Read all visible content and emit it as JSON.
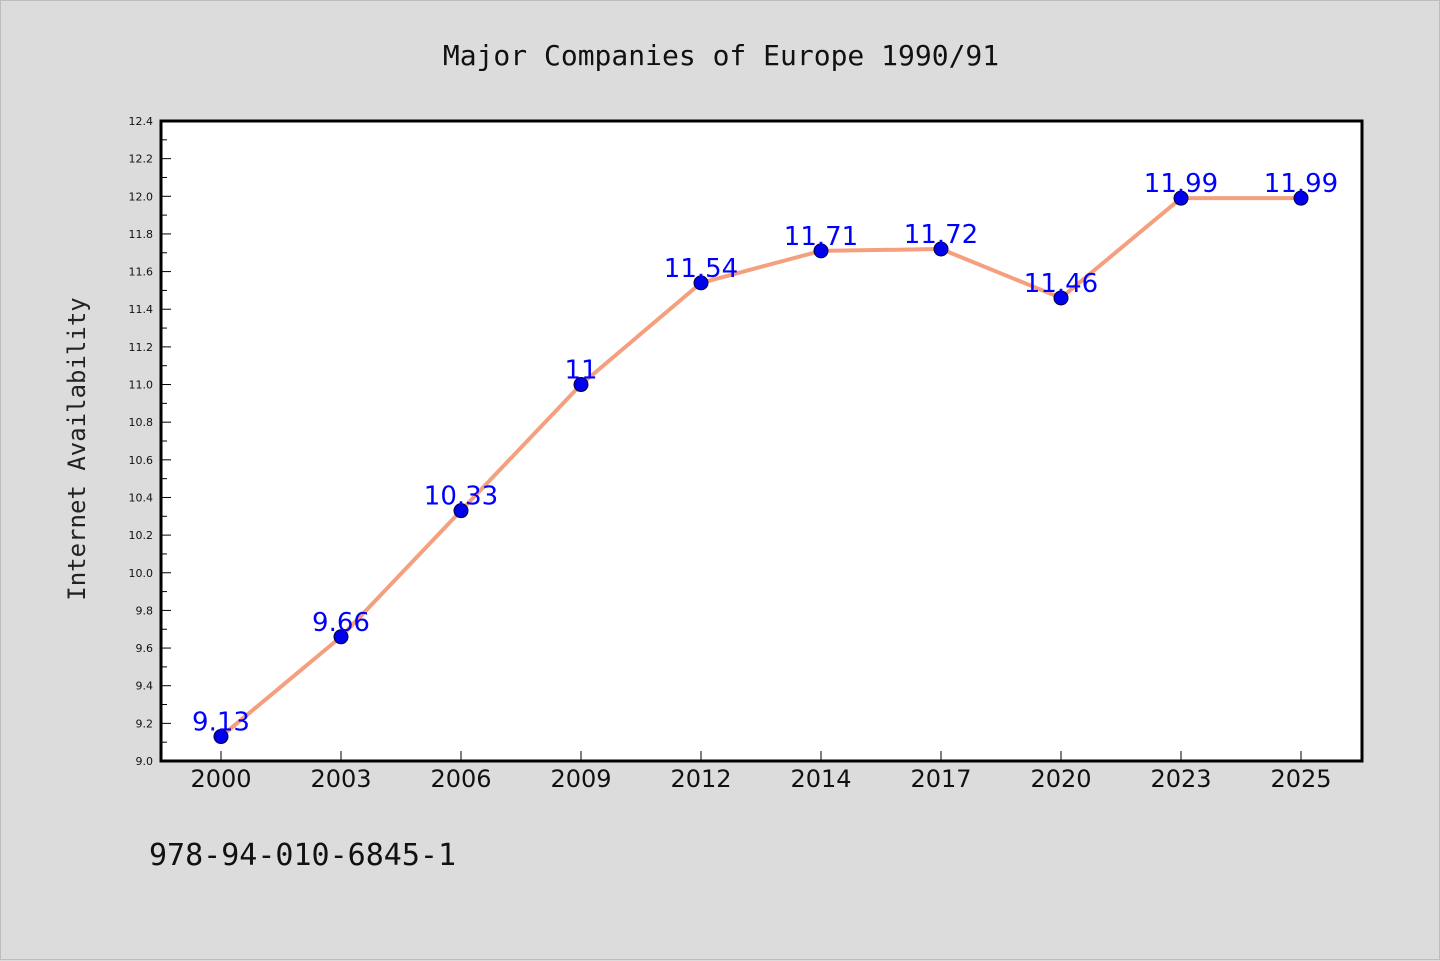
{
  "chart_data": {
    "type": "line",
    "title": "Major Companies of Europe 1990/91",
    "xlabel": "",
    "ylabel": "Internet Availability",
    "categories": [
      "2000",
      "2003",
      "2006",
      "2009",
      "2012",
      "2014",
      "2017",
      "2020",
      "2023",
      "2025"
    ],
    "series": [
      {
        "values": [
          9.13,
          9.66,
          10.33,
          11,
          11.54,
          11.71,
          11.72,
          11.46,
          11.99,
          11.99
        ],
        "labels": [
          "9.13",
          "9.66",
          "10.33",
          "11",
          "11.54",
          "11.71",
          "11.72",
          "11.46",
          "11.99",
          "11.99"
        ]
      }
    ],
    "ylim": [
      9.0,
      12.4
    ],
    "yticks": [
      "9.0",
      "9.2",
      "9.4",
      "9.6",
      "9.8",
      "10.0",
      "10.2",
      "10.4",
      "10.6",
      "10.8",
      "11.0",
      "11.2",
      "11.4",
      "11.6",
      "11.8",
      "12.0",
      "12.2",
      "12.4"
    ],
    "grid": false,
    "line_color": "#f4a07e",
    "marker_color": "#0000ee",
    "label_color": "#0000ff",
    "footer_text": "978-94-010-6845-1"
  }
}
